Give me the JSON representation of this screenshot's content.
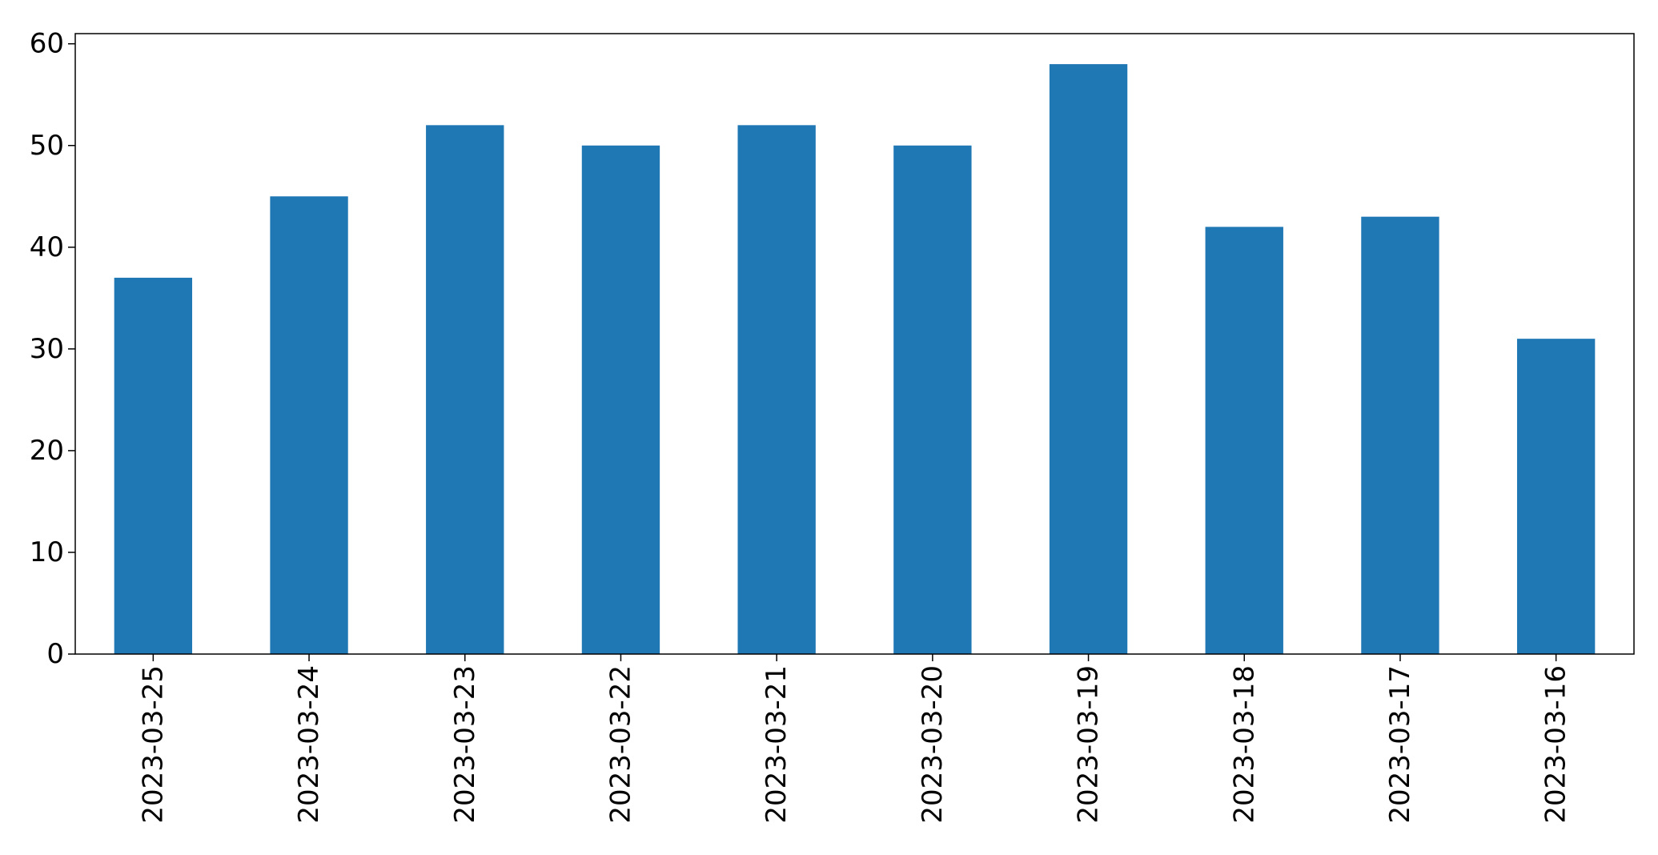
{
  "chart_data": {
    "type": "bar",
    "categories": [
      "2023-03-25",
      "2023-03-24",
      "2023-03-23",
      "2023-03-22",
      "2023-03-21",
      "2023-03-20",
      "2023-03-19",
      "2023-03-18",
      "2023-03-17",
      "2023-03-16"
    ],
    "values": [
      37,
      45,
      52,
      50,
      52,
      50,
      58,
      42,
      43,
      31
    ],
    "title": "",
    "xlabel": "",
    "ylabel": "",
    "ylim": [
      0,
      61
    ],
    "yticks": [
      0,
      10,
      20,
      30,
      40,
      50,
      60
    ],
    "grid": false,
    "legend": "none",
    "bar_color": "#1f77b4"
  }
}
